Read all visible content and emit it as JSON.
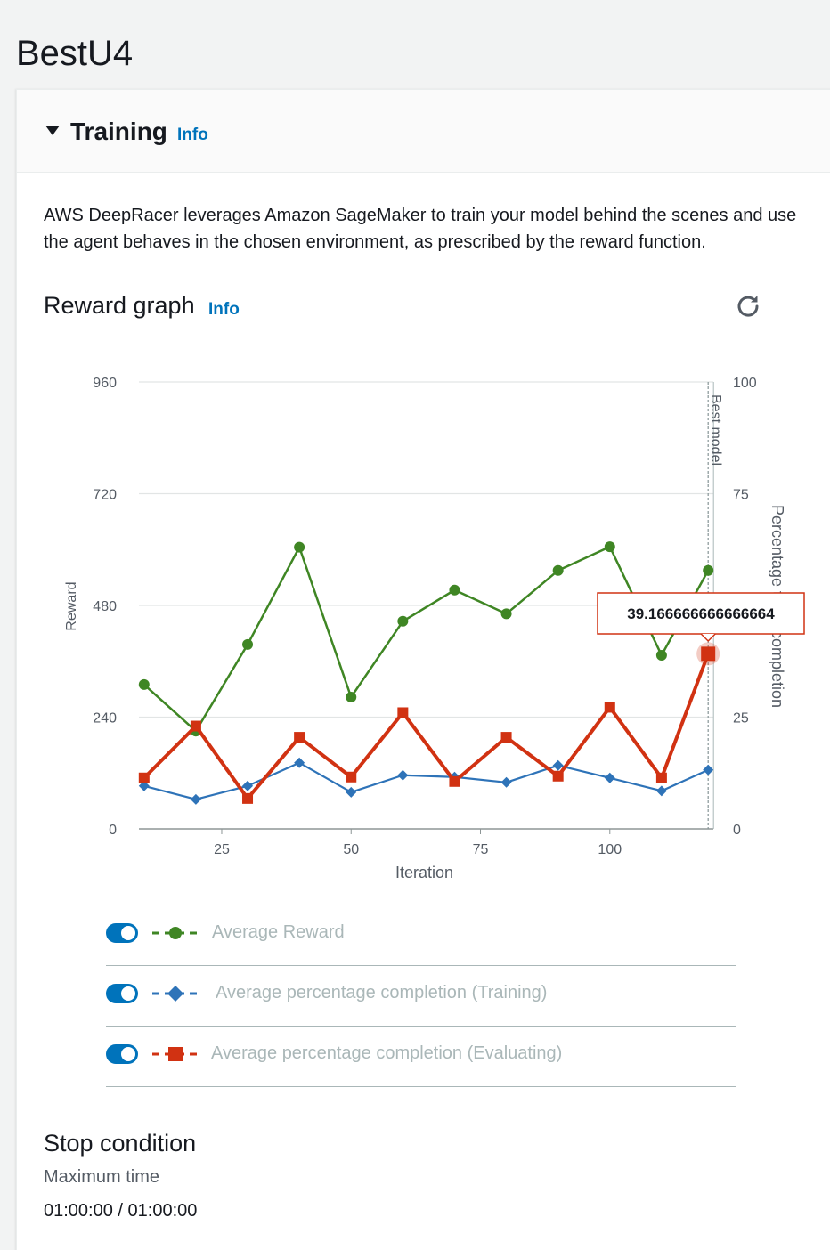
{
  "page": {
    "title": "BestU4"
  },
  "training": {
    "title": "Training",
    "info": "Info",
    "description_line1": "AWS DeepRacer leverages Amazon SageMaker to train your model behind the scenes and use",
    "description_line2": "the agent behaves in the chosen environment, as prescribed by the reward function."
  },
  "reward_graph": {
    "title": "Reward graph",
    "info": "Info",
    "refresh_icon": "refresh-icon"
  },
  "legend": [
    {
      "label": "Average Reward",
      "color": "#3f8624",
      "marker": "circle",
      "enabled": true
    },
    {
      "label": "Average percentage completion (Training)",
      "color": "#2e73b8",
      "marker": "diamond",
      "enabled": true
    },
    {
      "label": "Average percentage completion (Evaluating)",
      "color": "#d13212",
      "marker": "square",
      "enabled": true
    }
  ],
  "chart_data": {
    "type": "line",
    "xlabel": "Iteration",
    "ylabel": "Reward",
    "y2label": "Percentage track completion",
    "xlim": [
      9,
      120
    ],
    "ylim": [
      0,
      960
    ],
    "y2lim": [
      0,
      100
    ],
    "xticks": [
      "25",
      "50",
      "75",
      "100"
    ],
    "yticks": [
      "0",
      "240",
      "480",
      "720",
      "960"
    ],
    "y2ticks": [
      "0",
      "25",
      "50",
      "75",
      "100"
    ],
    "grid": true,
    "best_model_marker": {
      "label": "Best model",
      "x": 119
    },
    "tooltip": {
      "text": "39.166666666666664",
      "x": 119,
      "y2": 39.17
    },
    "series": [
      {
        "name": "Average Reward",
        "axis": "left",
        "color": "#3f8624",
        "marker": "circle",
        "x": [
          10,
          20,
          30,
          40,
          50,
          60,
          70,
          80,
          90,
          100,
          110,
          119
        ],
        "values": [
          310,
          210,
          396,
          605,
          283,
          446,
          513,
          462,
          555,
          606,
          373,
          555
        ]
      },
      {
        "name": "Average percentage completion (Training)",
        "axis": "right",
        "color": "#2e73b8",
        "marker": "diamond",
        "x": [
          10,
          20,
          30,
          40,
          50,
          60,
          70,
          80,
          90,
          100,
          110,
          119
        ],
        "values": [
          9.6,
          6.6,
          9.6,
          14.8,
          8.2,
          12.0,
          11.6,
          10.4,
          14.2,
          11.4,
          8.5,
          13.2
        ]
      },
      {
        "name": "Average percentage completion (Evaluating)",
        "axis": "right",
        "color": "#d13212",
        "marker": "square",
        "x": [
          10,
          20,
          30,
          40,
          50,
          60,
          70,
          80,
          90,
          100,
          110,
          119
        ],
        "values": [
          11.4,
          23.0,
          6.8,
          20.5,
          11.6,
          26.0,
          10.6,
          20.5,
          11.8,
          27.2,
          11.4,
          39.17
        ]
      }
    ]
  },
  "stop_condition": {
    "title": "Stop condition",
    "label": "Maximum time",
    "value": "01:00:00 / 01:00:00"
  }
}
